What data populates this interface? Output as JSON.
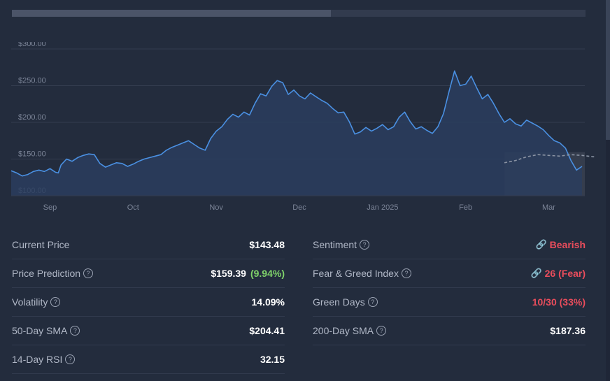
{
  "progress": {
    "fraction": 0.556
  },
  "chart_data": {
    "type": "area",
    "ylabel": "",
    "xlabel": "",
    "y_ticks": [
      "$300.00",
      "$250.00",
      "$200.00",
      "$150.00",
      "$100.00"
    ],
    "y_tick_values": [
      300,
      250,
      200,
      150,
      100
    ],
    "ylim": [
      100,
      300
    ],
    "x_ticks": [
      "Sep",
      "Oct",
      "Nov",
      "Dec",
      "Jan 2025",
      "Feb",
      "Mar"
    ],
    "x_tick_days": [
      14,
      44,
      74,
      104,
      134,
      164,
      194
    ],
    "x_range_days": [
      0,
      207
    ],
    "forecast_start_day": 178,
    "series": [
      {
        "kind": "historical",
        "points": [
          [
            0,
            134
          ],
          [
            2,
            131
          ],
          [
            4,
            127
          ],
          [
            6,
            129
          ],
          [
            8,
            133
          ],
          [
            10,
            135
          ],
          [
            12,
            133
          ],
          [
            14,
            137
          ],
          [
            16,
            132
          ],
          [
            17,
            131
          ],
          [
            18,
            142
          ],
          [
            20,
            150
          ],
          [
            22,
            147
          ],
          [
            24,
            152
          ],
          [
            26,
            155
          ],
          [
            28,
            157
          ],
          [
            30,
            156
          ],
          [
            32,
            144
          ],
          [
            34,
            139
          ],
          [
            36,
            142
          ],
          [
            38,
            145
          ],
          [
            40,
            144
          ],
          [
            42,
            140
          ],
          [
            44,
            143
          ],
          [
            46,
            147
          ],
          [
            48,
            150
          ],
          [
            50,
            152
          ],
          [
            52,
            154
          ],
          [
            54,
            156
          ],
          [
            56,
            162
          ],
          [
            58,
            166
          ],
          [
            60,
            169
          ],
          [
            62,
            172
          ],
          [
            64,
            175
          ],
          [
            66,
            170
          ],
          [
            68,
            165
          ],
          [
            70,
            162
          ],
          [
            72,
            178
          ],
          [
            74,
            188
          ],
          [
            76,
            194
          ],
          [
            78,
            204
          ],
          [
            80,
            211
          ],
          [
            82,
            207
          ],
          [
            84,
            214
          ],
          [
            86,
            210
          ],
          [
            88,
            226
          ],
          [
            90,
            239
          ],
          [
            92,
            236
          ],
          [
            94,
            249
          ],
          [
            96,
            257
          ],
          [
            98,
            254
          ],
          [
            100,
            238
          ],
          [
            102,
            244
          ],
          [
            104,
            236
          ],
          [
            106,
            232
          ],
          [
            108,
            240
          ],
          [
            110,
            235
          ],
          [
            112,
            230
          ],
          [
            114,
            226
          ],
          [
            116,
            219
          ],
          [
            118,
            213
          ],
          [
            120,
            214
          ],
          [
            122,
            201
          ],
          [
            124,
            184
          ],
          [
            126,
            187
          ],
          [
            128,
            193
          ],
          [
            130,
            188
          ],
          [
            132,
            192
          ],
          [
            134,
            197
          ],
          [
            136,
            190
          ],
          [
            138,
            194
          ],
          [
            140,
            207
          ],
          [
            142,
            214
          ],
          [
            144,
            201
          ],
          [
            146,
            191
          ],
          [
            148,
            194
          ],
          [
            150,
            189
          ],
          [
            152,
            185
          ],
          [
            154,
            194
          ],
          [
            156,
            212
          ],
          [
            158,
            242
          ],
          [
            160,
            270
          ],
          [
            162,
            250
          ],
          [
            164,
            252
          ],
          [
            166,
            263
          ],
          [
            168,
            247
          ],
          [
            170,
            232
          ],
          [
            172,
            238
          ],
          [
            174,
            226
          ],
          [
            176,
            212
          ],
          [
            178,
            200
          ],
          [
            180,
            205
          ],
          [
            182,
            198
          ],
          [
            184,
            195
          ],
          [
            186,
            203
          ],
          [
            188,
            199
          ],
          [
            190,
            195
          ],
          [
            192,
            190
          ],
          [
            194,
            182
          ],
          [
            196,
            175
          ],
          [
            198,
            172
          ],
          [
            200,
            165
          ],
          [
            202,
            148
          ],
          [
            204,
            135
          ],
          [
            206,
            140
          ]
        ]
      },
      {
        "kind": "forecast",
        "points": [
          [
            178,
            145
          ],
          [
            182,
            148
          ],
          [
            186,
            153
          ],
          [
            190,
            156
          ],
          [
            194,
            155
          ],
          [
            198,
            154
          ],
          [
            202,
            156
          ],
          [
            206,
            155
          ],
          [
            210,
            153
          ],
          [
            214,
            154
          ],
          [
            218,
            153
          ],
          [
            220,
            155
          ],
          [
            224,
            160
          ]
        ]
      }
    ]
  },
  "stats": {
    "left": [
      {
        "label": "Current Price",
        "value": "$143.48"
      },
      {
        "label": "Price Prediction",
        "value": "$159.39",
        "change": "(9.94%)"
      },
      {
        "label": "Volatility",
        "value": "14.09%"
      },
      {
        "label": "50-Day SMA",
        "value": "$204.41"
      },
      {
        "label": "14-Day RSI",
        "value": "32.15"
      }
    ],
    "right": [
      {
        "label": "Sentiment",
        "value": "Bearish"
      },
      {
        "label": "Fear & Greed Index",
        "value": "26 (Fear)"
      },
      {
        "label": "Green Days",
        "value": "10/30 (33%)"
      },
      {
        "label": "200-Day SMA",
        "value": "$187.36"
      }
    ]
  },
  "colors": {
    "line": "#4a90e2",
    "area": "#2a3d5e",
    "forecast_bg": "#353d4d",
    "forecast_line": "#8a93a3",
    "grid": "#333c4f",
    "axis_text": "#7c8598",
    "green": "#7fd26a",
    "red": "#ea4d5c"
  },
  "icons": {
    "help": "question-circle-icon",
    "link": "link-icon"
  }
}
